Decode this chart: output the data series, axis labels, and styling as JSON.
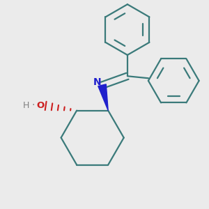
{
  "bg_color": "#ebebeb",
  "bond_color": "#3a7a7a",
  "N_color": "#2020cc",
  "O_color": "#cc2020",
  "H_color": "#808080",
  "lw": 1.6,
  "figsize": [
    3.0,
    3.0
  ],
  "dpi": 100,
  "xlim": [
    -1.6,
    1.6
  ],
  "ylim": [
    -1.7,
    1.7
  ],
  "ring_r": 0.52,
  "ph_r": 0.42
}
